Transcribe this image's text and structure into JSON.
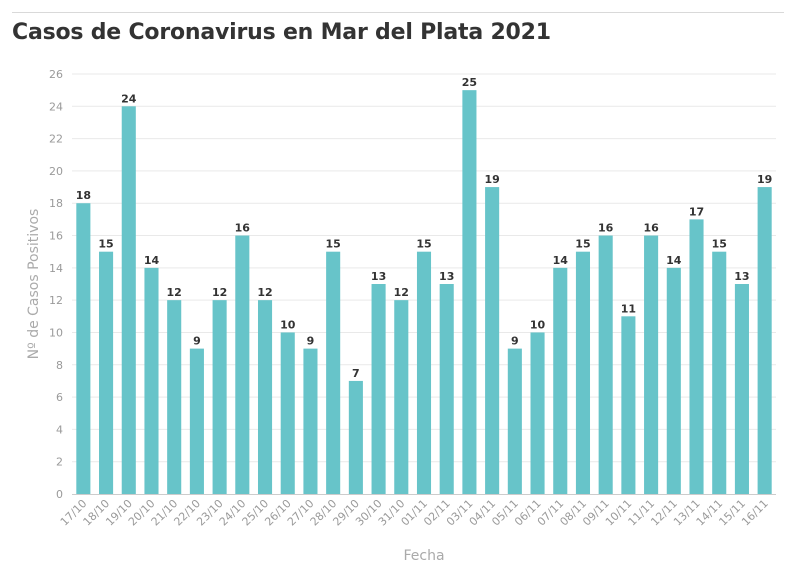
{
  "colors": {
    "bar": "#67c4c9",
    "grid": "#e9e9e9",
    "axis": "#cccccc",
    "tick": "#9a9a9a",
    "title": "#333333"
  },
  "chart_data": {
    "type": "bar",
    "title": "Casos de Coronavirus en Mar del Plata 2021",
    "xlabel": "Fecha",
    "ylabel": "Nº de Casos Positivos",
    "ylim": [
      0,
      26
    ],
    "yticks": [
      0,
      2,
      4,
      6,
      8,
      10,
      12,
      14,
      16,
      18,
      20,
      22,
      24,
      26
    ],
    "grid": true,
    "legend": "none",
    "categories": [
      "17/10",
      "18/10",
      "19/10",
      "20/10",
      "21/10",
      "22/10",
      "23/10",
      "24/10",
      "25/10",
      "26/10",
      "27/10",
      "28/10",
      "29/10",
      "30/10",
      "31/10",
      "01/11",
      "02/11",
      "03/11",
      "04/11",
      "05/11",
      "06/11",
      "07/11",
      "08/11",
      "09/11",
      "10/11",
      "11/11",
      "12/11",
      "13/11",
      "14/11",
      "15/11",
      "16/11"
    ],
    "values": [
      18,
      15,
      24,
      14,
      12,
      9,
      12,
      16,
      12,
      10,
      9,
      15,
      7,
      13,
      12,
      15,
      13,
      25,
      19,
      9,
      10,
      14,
      15,
      16,
      11,
      16,
      14,
      17,
      15,
      13,
      19
    ]
  }
}
